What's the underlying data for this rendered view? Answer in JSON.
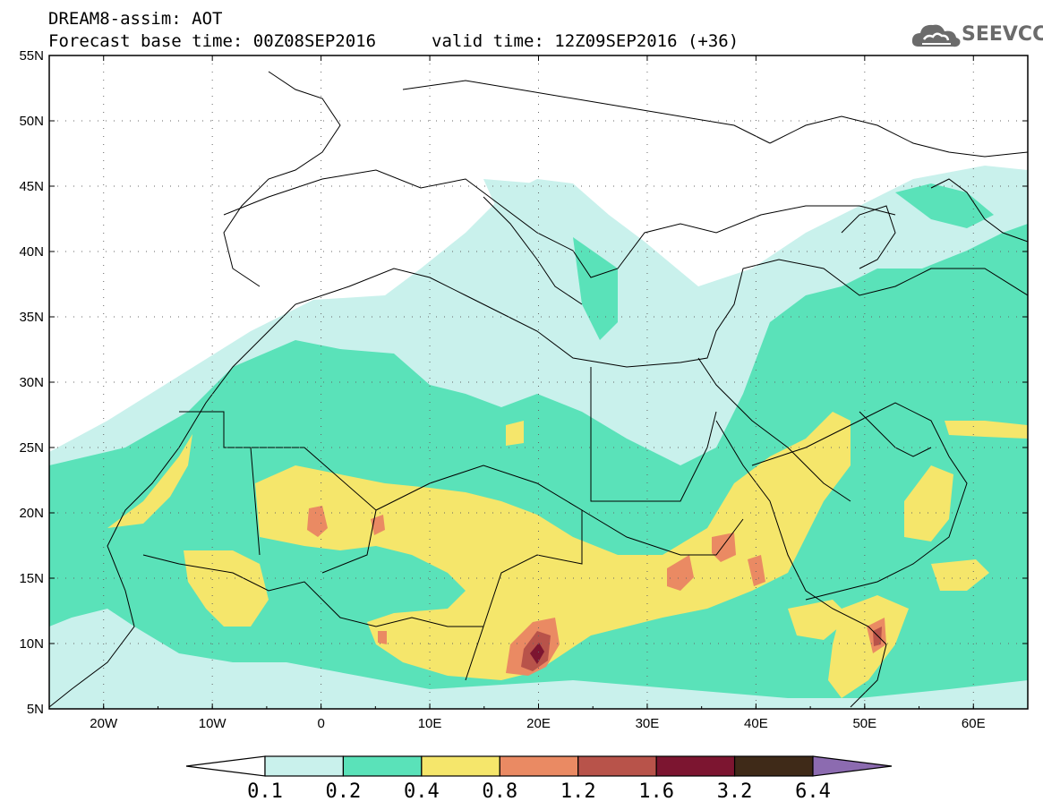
{
  "header": {
    "title": "DREAM8-assim: AOT",
    "base_time": "Forecast base time: 00Z08SEP2016",
    "valid_time": "valid time: 12Z09SEP2016 (+36)"
  },
  "logo": {
    "text": "SEEVCCC",
    "icon": "cloud-logo-icon"
  },
  "map": {
    "lat_labels": [
      "55N",
      "50N",
      "45N",
      "40N",
      "35N",
      "30N",
      "25N",
      "20N",
      "15N",
      "10N",
      "5N"
    ],
    "lon_labels": [
      "20W",
      "10W",
      "0",
      "10E",
      "20E",
      "30E",
      "40E",
      "50E",
      "60E"
    ],
    "grid": "dotted",
    "colors": {
      "c01": "#c9f1ec",
      "c02": "#5ae2b9",
      "c04": "#f5e66b",
      "c08": "#ea8a63",
      "c12": "#b8534a",
      "c16": "#7c1530",
      "c32": "#3f2a18",
      "c64": "#8c6bb0"
    }
  },
  "colorbar": {
    "labels": [
      "0.1",
      "0.2",
      "0.4",
      "0.8",
      "1.2",
      "1.6",
      "3.2",
      "6.4"
    ],
    "colors": [
      "#ffffff",
      "#c9f1ec",
      "#5ae2b9",
      "#f5e66b",
      "#ea8a63",
      "#b8534a",
      "#7c1530",
      "#3f2a18",
      "#8c6bb0"
    ]
  }
}
